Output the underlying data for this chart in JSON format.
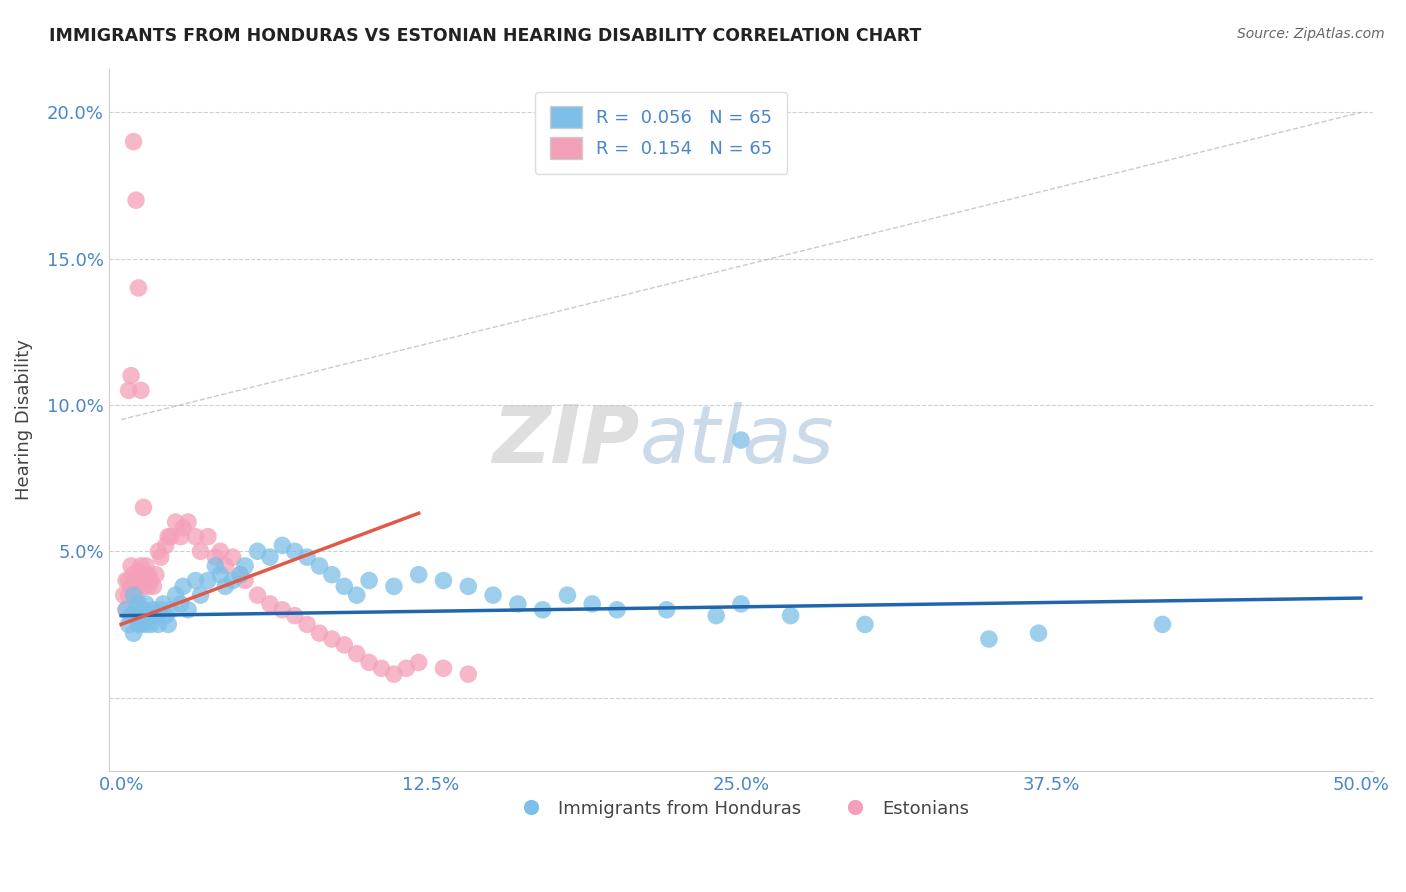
{
  "title": "IMMIGRANTS FROM HONDURAS VS ESTONIAN HEARING DISABILITY CORRELATION CHART",
  "source": "Source: ZipAtlas.com",
  "ylabel": "Hearing Disability",
  "ytick_values": [
    0.0,
    0.05,
    0.1,
    0.15,
    0.2
  ],
  "xtick_values": [
    0.0,
    0.125,
    0.25,
    0.375,
    0.5
  ],
  "xlim": [
    -0.005,
    0.505
  ],
  "ylim": [
    -0.025,
    0.215
  ],
  "color_blue": "#7dbfe8",
  "color_pink": "#f4a0b8",
  "line_blue": "#2166ac",
  "line_pink": "#e05a4a",
  "dash_color": "#c0a0a0",
  "watermark_zip": "ZIP",
  "watermark_atlas": "atlas",
  "background_color": "#ffffff",
  "grid_color": "#d0d0d0",
  "title_color": "#222222",
  "axis_label_color": "#444444",
  "tick_color": "#4a86c8",
  "source_color": "#666666",
  "blue_scatter_x": [
    0.002,
    0.003,
    0.004,
    0.005,
    0.005,
    0.006,
    0.007,
    0.007,
    0.008,
    0.008,
    0.009,
    0.01,
    0.01,
    0.011,
    0.012,
    0.013,
    0.014,
    0.015,
    0.016,
    0.017,
    0.018,
    0.019,
    0.02,
    0.022,
    0.024,
    0.025,
    0.027,
    0.03,
    0.032,
    0.035,
    0.038,
    0.04,
    0.042,
    0.045,
    0.048,
    0.05,
    0.055,
    0.06,
    0.065,
    0.07,
    0.075,
    0.08,
    0.085,
    0.09,
    0.095,
    0.1,
    0.11,
    0.12,
    0.13,
    0.14,
    0.15,
    0.16,
    0.17,
    0.18,
    0.19,
    0.2,
    0.22,
    0.24,
    0.25,
    0.27,
    0.3,
    0.35,
    0.37,
    0.42,
    0.25
  ],
  "blue_scatter_y": [
    0.03,
    0.025,
    0.028,
    0.022,
    0.035,
    0.03,
    0.025,
    0.032,
    0.025,
    0.028,
    0.03,
    0.025,
    0.032,
    0.028,
    0.025,
    0.03,
    0.028,
    0.025,
    0.03,
    0.032,
    0.028,
    0.025,
    0.03,
    0.035,
    0.032,
    0.038,
    0.03,
    0.04,
    0.035,
    0.04,
    0.045,
    0.042,
    0.038,
    0.04,
    0.042,
    0.045,
    0.05,
    0.048,
    0.052,
    0.05,
    0.048,
    0.045,
    0.042,
    0.038,
    0.035,
    0.04,
    0.038,
    0.042,
    0.04,
    0.038,
    0.035,
    0.032,
    0.03,
    0.035,
    0.032,
    0.03,
    0.03,
    0.028,
    0.032,
    0.028,
    0.025,
    0.02,
    0.022,
    0.025,
    0.088
  ],
  "pink_scatter_x": [
    0.001,
    0.002,
    0.002,
    0.003,
    0.003,
    0.004,
    0.004,
    0.005,
    0.005,
    0.006,
    0.006,
    0.007,
    0.007,
    0.008,
    0.008,
    0.009,
    0.009,
    0.01,
    0.01,
    0.011,
    0.011,
    0.012,
    0.013,
    0.014,
    0.015,
    0.016,
    0.018,
    0.019,
    0.02,
    0.022,
    0.024,
    0.025,
    0.027,
    0.03,
    0.032,
    0.035,
    0.038,
    0.04,
    0.042,
    0.045,
    0.048,
    0.05,
    0.055,
    0.06,
    0.065,
    0.07,
    0.075,
    0.08,
    0.085,
    0.09,
    0.095,
    0.1,
    0.105,
    0.11,
    0.115,
    0.12,
    0.13,
    0.14,
    0.003,
    0.004,
    0.005,
    0.006,
    0.007,
    0.008,
    0.009
  ],
  "pink_scatter_y": [
    0.035,
    0.04,
    0.03,
    0.035,
    0.04,
    0.045,
    0.038,
    0.042,
    0.038,
    0.04,
    0.035,
    0.038,
    0.043,
    0.04,
    0.045,
    0.038,
    0.042,
    0.04,
    0.045,
    0.038,
    0.042,
    0.04,
    0.038,
    0.042,
    0.05,
    0.048,
    0.052,
    0.055,
    0.055,
    0.06,
    0.055,
    0.058,
    0.06,
    0.055,
    0.05,
    0.055,
    0.048,
    0.05,
    0.045,
    0.048,
    0.042,
    0.04,
    0.035,
    0.032,
    0.03,
    0.028,
    0.025,
    0.022,
    0.02,
    0.018,
    0.015,
    0.012,
    0.01,
    0.008,
    0.01,
    0.012,
    0.01,
    0.008,
    0.105,
    0.11,
    0.19,
    0.17,
    0.14,
    0.105,
    0.065
  ],
  "blue_line_x": [
    0.0,
    0.5
  ],
  "blue_line_y": [
    0.028,
    0.034
  ],
  "pink_line_x": [
    0.0,
    0.12
  ],
  "pink_line_y": [
    0.025,
    0.063
  ],
  "dash_line_x": [
    0.0,
    0.5
  ],
  "dash_line_y": [
    0.095,
    0.2
  ]
}
